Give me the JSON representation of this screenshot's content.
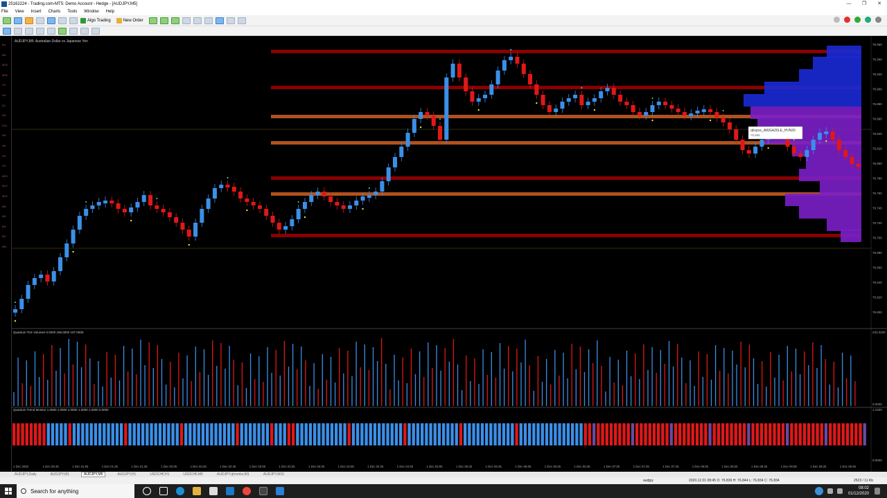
{
  "window": {
    "title": "25162224 - Trading.com-MT5: Demo Account - Hedge - [AUDJPY,M5]",
    "controls": [
      "—",
      "❐",
      "✕"
    ]
  },
  "menu": [
    "File",
    "View",
    "Insert",
    "Charts",
    "Tools",
    "Window",
    "Help"
  ],
  "toolbar": {
    "algo_trading": "Algo Trading",
    "new_order": "New Order"
  },
  "chart": {
    "header": "AUDJPY,M5: Australian Dollar vs Japanese Yen",
    "tooltip_title": "qhvpoc_AWGAZ6LE_HVN26",
    "tooltip_value": "76.866",
    "volume_label": "Quantum Tick Volumes 0.0000 196.0000 107.0000",
    "trend_label": "Quantum Trend Monitor 1.0000 1.0000 1.0000 1.0000 1.0000 0.0000",
    "price_labels": [
      "76.960",
      "76.940",
      "76.920",
      "76.900",
      "76.880",
      "76.860",
      "76.840",
      "76.820",
      "76.800",
      "76.780",
      "76.760",
      "76.740",
      "76.720",
      "76.700",
      "76.680",
      "76.660",
      "76.640",
      "76.620",
      "76.600"
    ],
    "volume_scale": [
      "233.3200",
      "0.0000"
    ],
    "trend_scale": [
      "1.2300",
      "0.0000"
    ],
    "time_labels": [
      "1 Dec 2020",
      "1 Dec 00:45",
      "1 Dec 01:05",
      "1 Dec 01:25",
      "1 Dec 01:45",
      "1 Dec 02:05",
      "1 Dec 02:25",
      "1 Dec 02:45",
      "1 Dec 03:05",
      "1 Dec 03:25",
      "1 Dec 03:45",
      "1 Dec 04:05",
      "1 Dec 04:25",
      "1 Dec 04:45",
      "1 Dec 05:05",
      "1 Dec 05:25",
      "1 Dec 05:45",
      "1 Dec 06:05",
      "1 Dec 06:25",
      "1 Dec 06:45",
      "1 Dec 07:05",
      "1 Dec 07:25",
      "1 Dec 07:45",
      "1 Dec 08:05",
      "1 Dec 08:25",
      "1 Dec 08:45",
      "1 Dec 09:05",
      "1 Dec 09:25",
      "1 Dec 09:45"
    ],
    "timeframes": [
      "M1",
      "M5",
      "M15",
      "M30",
      "H1",
      "H4",
      "D1",
      "W1",
      "H12",
      "H8",
      "H6",
      "H3",
      "H2",
      "M20",
      "M12",
      "M10",
      "M6",
      "M4",
      "M3",
      "M2",
      "MN"
    ],
    "colors": {
      "bull": "#3b8fe8",
      "bear": "#e01818",
      "zone_red": "#8b0000",
      "zone_orange": "#b0521e",
      "profile_blue": "#1a2ad6",
      "profile_purple": "#7a1fc8"
    }
  },
  "tabs": [
    "AUDJPY,Daily",
    "AUDJPY,M1",
    "AUDJPY,M5",
    "AUDJPY,H1",
    "USDCHF,H1",
    "USDCHF,M5",
    "AUDJPY,qhrenko,M1",
    "AUDJPY,M15"
  ],
  "active_tab": "AUDJPY,M5",
  "status": {
    "symbol": "audjpy",
    "ohlc": "2020.12.01 08:45   O: 76.839   H: 76.844   L: 76.834   C: 76.834",
    "traffic": "2523 / 11 Kb"
  },
  "taskbar": {
    "search_placeholder": "Search for anything",
    "time": "08:02",
    "date": "01/12/2020"
  }
}
